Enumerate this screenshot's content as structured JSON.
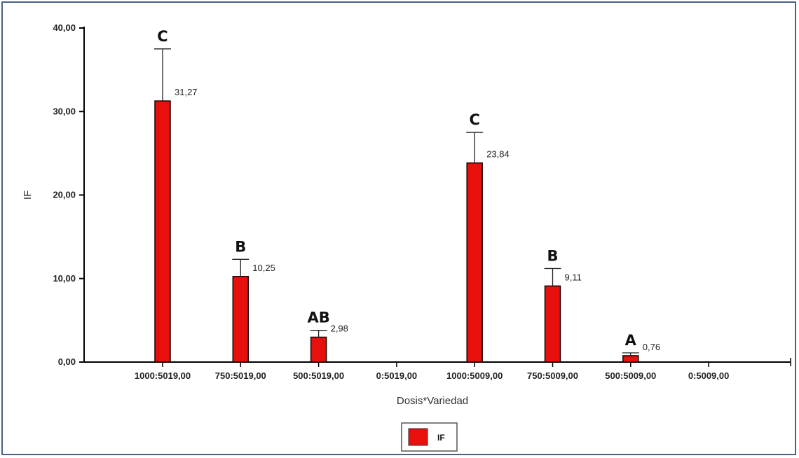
{
  "chart_data": {
    "type": "bar",
    "xlabel": "Dosis*Variedad",
    "ylabel": "IF",
    "ylim": [
      0,
      40
    ],
    "yticks": [
      "0,00",
      "10,00",
      "20,00",
      "30,00",
      "40,00"
    ],
    "grid": false,
    "legend_position": "bottom-center",
    "categories": [
      "1000:5019,00",
      "750:5019,00",
      "500:5019,00",
      "0:5019,00",
      "1000:5009,00",
      "750:5009,00",
      "500:5009,00",
      "0:5009,00"
    ],
    "series": [
      {
        "name": "IF",
        "color": "#e8100c",
        "values": [
          31.27,
          10.25,
          2.98,
          0,
          23.84,
          9.11,
          0.76,
          0
        ],
        "error_upper": [
          37.5,
          12.3,
          3.8,
          null,
          27.5,
          11.2,
          1.1,
          null
        ],
        "data_labels": [
          "31,27",
          "10,25",
          "2,98",
          "",
          "23,84",
          "9,11",
          "0,76",
          ""
        ],
        "significance": [
          "C",
          "B",
          "AB",
          "",
          "C",
          "B",
          "A",
          ""
        ]
      }
    ]
  }
}
